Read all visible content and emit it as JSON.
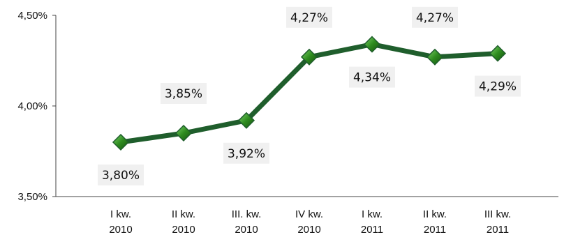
{
  "chart_data": {
    "type": "line",
    "categories": [
      [
        "I kw.",
        "2010"
      ],
      [
        "II kw.",
        "2010"
      ],
      [
        "III. kw.",
        "2010"
      ],
      [
        "IV kw.",
        "2010"
      ],
      [
        "I kw.",
        "2011"
      ],
      [
        "II kw.",
        "2011"
      ],
      [
        "III kw.",
        "2011"
      ]
    ],
    "series": [
      {
        "values": [
          3.8,
          3.85,
          3.92,
          4.27,
          4.34,
          4.27,
          4.29
        ],
        "data_labels": [
          "3,80%",
          "3,85%",
          "3,92%",
          "4,27%",
          "4,34%",
          "4,27%",
          "4,29%"
        ],
        "label_side": [
          "below",
          "above",
          "below",
          "above",
          "below",
          "above",
          "below"
        ]
      }
    ],
    "ylim": [
      3.5,
      4.5
    ],
    "yticks": [
      3.5,
      4.0,
      4.5
    ],
    "ytick_labels": [
      "3,50%",
      "4,00%",
      "4,50%"
    ],
    "title": "",
    "xlabel": "",
    "ylabel": "",
    "grid": false,
    "colors": {
      "line": "#1f5e2c",
      "marker_fill": "#2e8b1f",
      "marker_edge": "#1f5e2c",
      "label_box": "#f0f0f0",
      "axis": "#444444"
    }
  }
}
